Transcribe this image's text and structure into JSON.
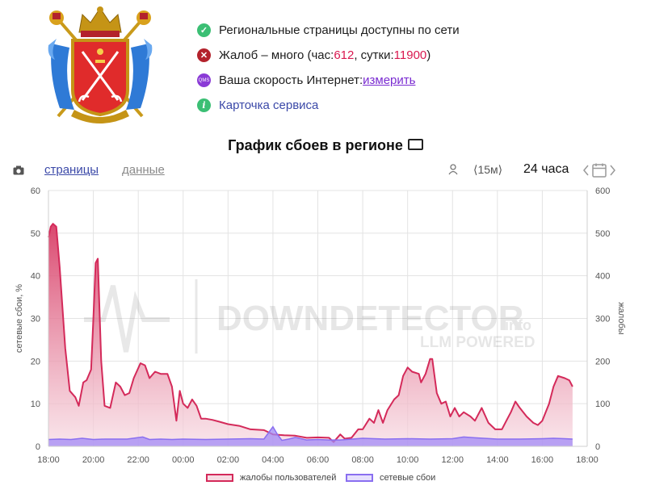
{
  "status": {
    "pages_available": "Региональные страницы доступны по сети",
    "complaints_prefix": "Жалоб – много (час: ",
    "complaints_hour": "612",
    "complaints_sep": ", сутки: ",
    "complaints_day": "11900",
    "complaints_suffix": ")",
    "speed_prefix": "Ваша скорость Интернет: ",
    "speed_link": "измерить",
    "service_card": "Карточка сервиса",
    "qms_icon_text": "QMS",
    "info_icon_text": "i"
  },
  "chart_header": {
    "title": "График сбоев в регионе"
  },
  "toolbar": {
    "tab_pages": "страницы",
    "tab_data": "данные",
    "interval": "⟨15м⟩",
    "range": "24 часа",
    "calendar_icon": "calendar-icon"
  },
  "colors": {
    "complaints_line": "#d42a5a",
    "complaints_fill_top": "#d6335e",
    "complaints_fill_bottom": "#f7dbe3",
    "outages_line": "#8a6ff0",
    "outages_fill": "#a28af5"
  },
  "chart_data": {
    "type": "area",
    "title": "",
    "xlabel": "",
    "ylabel_left": "сетевые сбои, %",
    "ylabel_right": "жалобы",
    "x_ticks": [
      "18:00",
      "20:00",
      "22:00",
      "00:00",
      "02:00",
      "04:00",
      "06:00",
      "08:00",
      "10:00",
      "12:00",
      "14:00",
      "16:00",
      "18:00"
    ],
    "y_left_ticks": [
      "0",
      "10",
      "20",
      "30",
      "40",
      "50",
      "60"
    ],
    "y_right_ticks": [
      "0",
      "100",
      "200",
      "300",
      "400",
      "500",
      "600"
    ],
    "ylim_left": [
      0,
      60
    ],
    "ylim_right": [
      0,
      600
    ],
    "xlim_hours": [
      0,
      24
    ],
    "grid": true,
    "watermark": "DOWNDETECTOR",
    "watermark_suffix": ".info",
    "watermark_sub": "LLM POWERED",
    "series": [
      {
        "name": "жалобы пользователей",
        "axis": "right",
        "points": [
          [
            0,
            490
          ],
          [
            0.1,
            515
          ],
          [
            0.2,
            522
          ],
          [
            0.35,
            515
          ],
          [
            0.5,
            420
          ],
          [
            0.75,
            230
          ],
          [
            0.95,
            130
          ],
          [
            1.2,
            115
          ],
          [
            1.35,
            95
          ],
          [
            1.55,
            150
          ],
          [
            1.7,
            155
          ],
          [
            1.9,
            180
          ],
          [
            2.0,
            300
          ],
          [
            2.1,
            430
          ],
          [
            2.2,
            440
          ],
          [
            2.35,
            200
          ],
          [
            2.5,
            95
          ],
          [
            2.75,
            90
          ],
          [
            3.0,
            150
          ],
          [
            3.2,
            140
          ],
          [
            3.4,
            120
          ],
          [
            3.6,
            125
          ],
          [
            3.8,
            160
          ],
          [
            4.1,
            195
          ],
          [
            4.3,
            190
          ],
          [
            4.5,
            160
          ],
          [
            4.75,
            175
          ],
          [
            5.0,
            170
          ],
          [
            5.3,
            170
          ],
          [
            5.5,
            140
          ],
          [
            5.7,
            60
          ],
          [
            5.85,
            130
          ],
          [
            6.0,
            100
          ],
          [
            6.2,
            90
          ],
          [
            6.4,
            110
          ],
          [
            6.6,
            95
          ],
          [
            6.8,
            65
          ],
          [
            7.0,
            65
          ],
          [
            7.3,
            62
          ],
          [
            7.6,
            58
          ],
          [
            8.0,
            52
          ],
          [
            8.5,
            48
          ],
          [
            9.0,
            40
          ],
          [
            9.6,
            38
          ],
          [
            10.0,
            28
          ],
          [
            10.5,
            26
          ],
          [
            11.0,
            25
          ],
          [
            11.5,
            20
          ],
          [
            12.0,
            21
          ],
          [
            12.5,
            20
          ],
          [
            12.7,
            10
          ],
          [
            13.0,
            28
          ],
          [
            13.2,
            18
          ],
          [
            13.5,
            20
          ],
          [
            13.8,
            40
          ],
          [
            14.0,
            40
          ],
          [
            14.3,
            65
          ],
          [
            14.5,
            55
          ],
          [
            14.7,
            85
          ],
          [
            14.9,
            55
          ],
          [
            15.1,
            85
          ],
          [
            15.4,
            110
          ],
          [
            15.6,
            120
          ],
          [
            15.8,
            165
          ],
          [
            16.0,
            185
          ],
          [
            16.2,
            175
          ],
          [
            16.5,
            170
          ],
          [
            16.6,
            150
          ],
          [
            16.8,
            170
          ],
          [
            17.0,
            205
          ],
          [
            17.1,
            205
          ],
          [
            17.3,
            125
          ],
          [
            17.5,
            100
          ],
          [
            17.7,
            105
          ],
          [
            17.9,
            70
          ],
          [
            18.1,
            90
          ],
          [
            18.3,
            70
          ],
          [
            18.5,
            80
          ],
          [
            18.8,
            70
          ],
          [
            19.0,
            60
          ],
          [
            19.3,
            90
          ],
          [
            19.6,
            55
          ],
          [
            19.9,
            40
          ],
          [
            20.2,
            40
          ],
          [
            20.4,
            60
          ],
          [
            20.6,
            80
          ],
          [
            20.8,
            105
          ],
          [
            21.0,
            90
          ],
          [
            21.3,
            70
          ],
          [
            21.6,
            55
          ],
          [
            21.8,
            50
          ],
          [
            22.0,
            60
          ],
          [
            22.3,
            100
          ],
          [
            22.5,
            140
          ],
          [
            22.7,
            165
          ],
          [
            23.0,
            160
          ],
          [
            23.2,
            155
          ],
          [
            23.35,
            140
          ]
        ]
      },
      {
        "name": "сетевые сбои",
        "axis": "left",
        "points": [
          [
            0,
            1.6
          ],
          [
            0.5,
            1.7
          ],
          [
            1.0,
            1.6
          ],
          [
            1.5,
            1.9
          ],
          [
            2.0,
            1.6
          ],
          [
            2.5,
            1.7
          ],
          [
            3.0,
            1.7
          ],
          [
            3.5,
            1.7
          ],
          [
            4.2,
            2.2
          ],
          [
            4.5,
            1.6
          ],
          [
            5.0,
            1.7
          ],
          [
            5.5,
            1.6
          ],
          [
            6.0,
            1.7
          ],
          [
            7.0,
            1.6
          ],
          [
            8.0,
            1.7
          ],
          [
            9.0,
            1.8
          ],
          [
            9.6,
            1.7
          ],
          [
            9.85,
            3.5
          ],
          [
            10.0,
            4.6
          ],
          [
            10.2,
            2.8
          ],
          [
            10.4,
            1.4
          ],
          [
            10.7,
            1.7
          ],
          [
            11.0,
            2.1
          ],
          [
            11.5,
            1.5
          ],
          [
            12.0,
            1.6
          ],
          [
            12.5,
            1.5
          ],
          [
            13.0,
            1.5
          ],
          [
            14.0,
            1.9
          ],
          [
            15.0,
            1.7
          ],
          [
            16.0,
            1.8
          ],
          [
            17.0,
            1.7
          ],
          [
            18.0,
            1.8
          ],
          [
            18.5,
            2.2
          ],
          [
            19.0,
            2.0
          ],
          [
            20.0,
            1.7
          ],
          [
            21.0,
            1.7
          ],
          [
            22.0,
            1.8
          ],
          [
            22.5,
            1.9
          ],
          [
            23.0,
            1.8
          ],
          [
            23.35,
            1.7
          ]
        ]
      }
    ],
    "legend": [
      "жалобы пользователей",
      "сетевые сбои"
    ],
    "legend_position": "bottom"
  }
}
